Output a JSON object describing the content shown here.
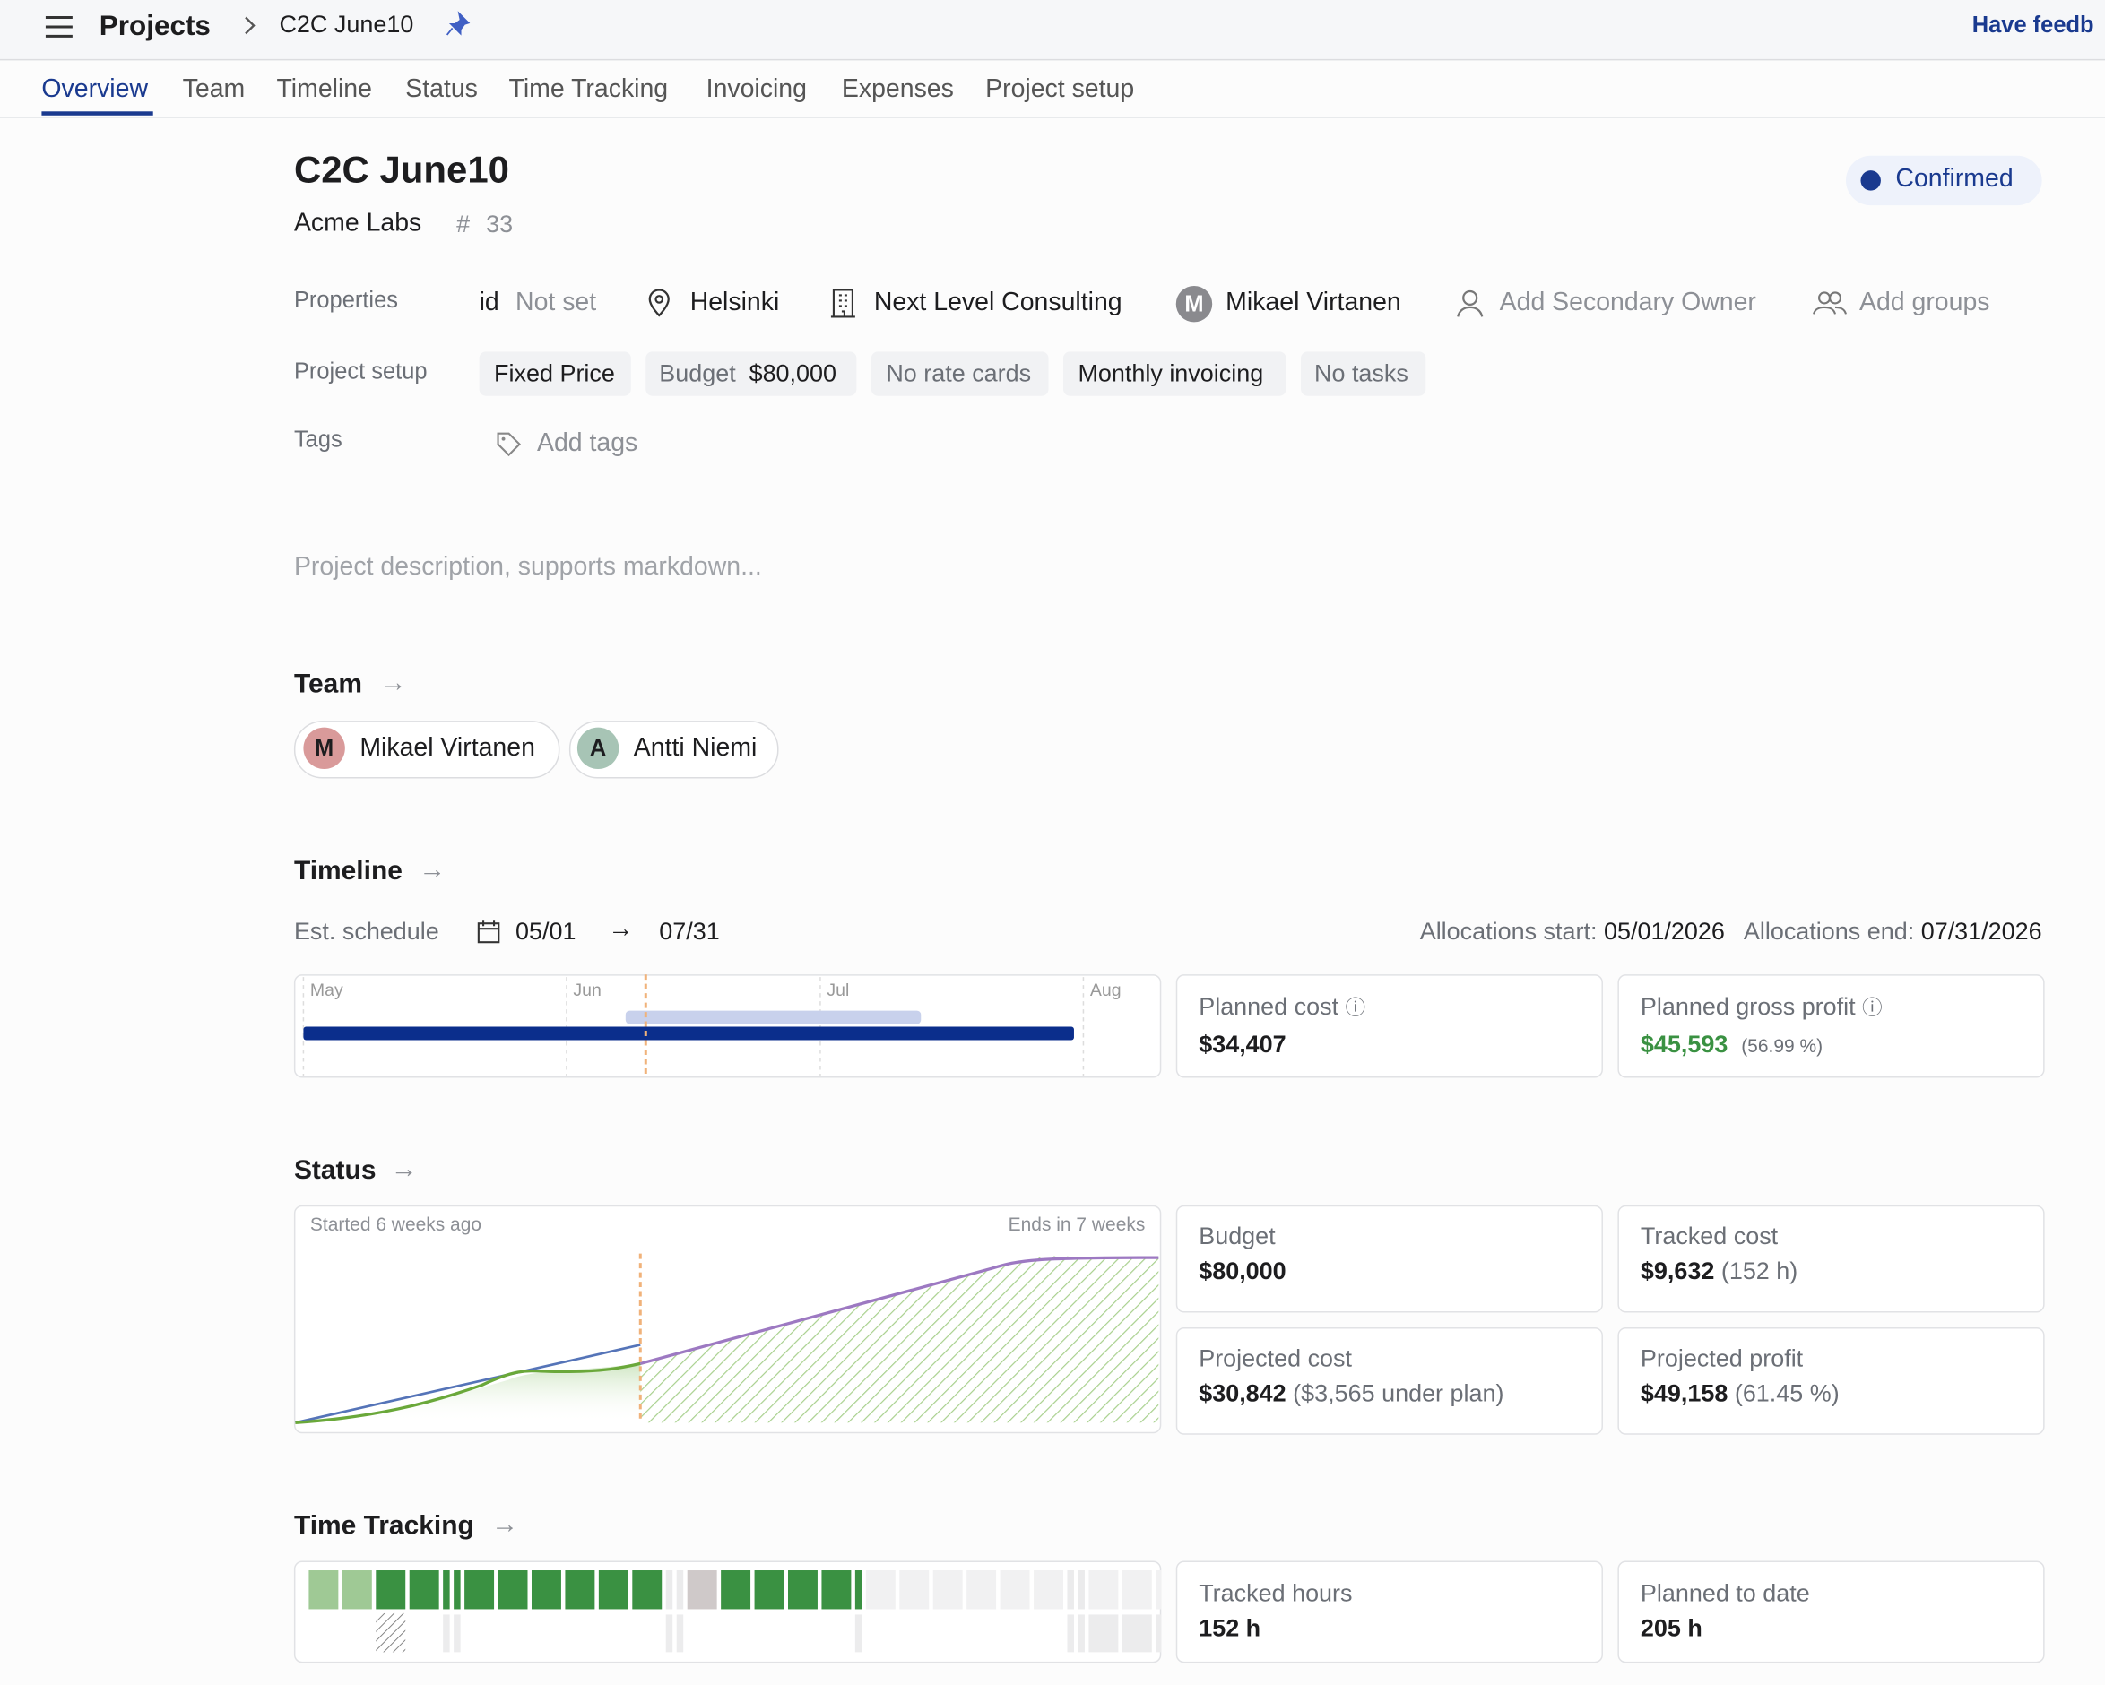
{
  "header": {
    "breadcrumb": "Projects",
    "project": "C2C June10",
    "feedback": "Have feedb"
  },
  "tabs": [
    "Overview",
    "Team",
    "Timeline",
    "Status",
    "Time Tracking",
    "Invoicing",
    "Expenses",
    "Project setup"
  ],
  "project": {
    "title": "C2C June10",
    "client": "Acme Labs",
    "number_label": "#",
    "number": "33",
    "status": "Confirmed"
  },
  "properties": {
    "label": "Properties",
    "id_label": "id",
    "id_value": "Not set",
    "location": "Helsinki",
    "company": "Next Level Consulting",
    "owner_initial": "M",
    "owner": "Mikael Virtanen",
    "secondary_owner": "Add Secondary Owner",
    "groups": "Add groups"
  },
  "project_setup": {
    "label": "Project setup",
    "pricing": "Fixed Price",
    "budget_label": "Budget",
    "budget_value": "$80,000",
    "rate_cards": "No rate cards",
    "invoicing": "Monthly invoicing",
    "tasks": "No tasks"
  },
  "tags": {
    "label": "Tags",
    "add": "Add tags"
  },
  "description_placeholder": "Project description, supports markdown...",
  "team": {
    "title": "Team",
    "members": [
      {
        "initial": "M",
        "name": "Mikael Virtanen"
      },
      {
        "initial": "A",
        "name": "Antti Niemi"
      }
    ]
  },
  "timeline": {
    "title": "Timeline",
    "schedule_label": "Est. schedule",
    "start": "05/01",
    "end": "07/31",
    "alloc_start_label": "Allocations start:",
    "alloc_start": "05/01/2026",
    "alloc_end_label": "Allocations end:",
    "alloc_end": "07/31/2026",
    "months": [
      "May",
      "Jun",
      "Jul",
      "Aug"
    ],
    "planned_cost_label": "Planned cost",
    "planned_cost": "$34,407",
    "gross_profit_label": "Planned gross profit",
    "gross_profit": "$45,593",
    "gross_profit_pct": "(56.99 %)"
  },
  "status": {
    "title": "Status",
    "started": "Started 6 weeks ago",
    "ends": "Ends in 7 weeks",
    "cards": [
      {
        "label": "Budget",
        "value": "$80,000"
      },
      {
        "label": "Tracked cost",
        "value": "$9,632",
        "detail": "(152 h)"
      },
      {
        "label": "Projected cost",
        "value": "$30,842",
        "detail": "($3,565 under plan)"
      },
      {
        "label": "Projected profit",
        "value": "$49,158",
        "detail": "(61.45 %)"
      }
    ]
  },
  "time_tracking": {
    "title": "Time Tracking",
    "tracked_label": "Tracked hours",
    "tracked": "152 h",
    "planned_label": "Planned to date",
    "planned": "205 h"
  }
}
